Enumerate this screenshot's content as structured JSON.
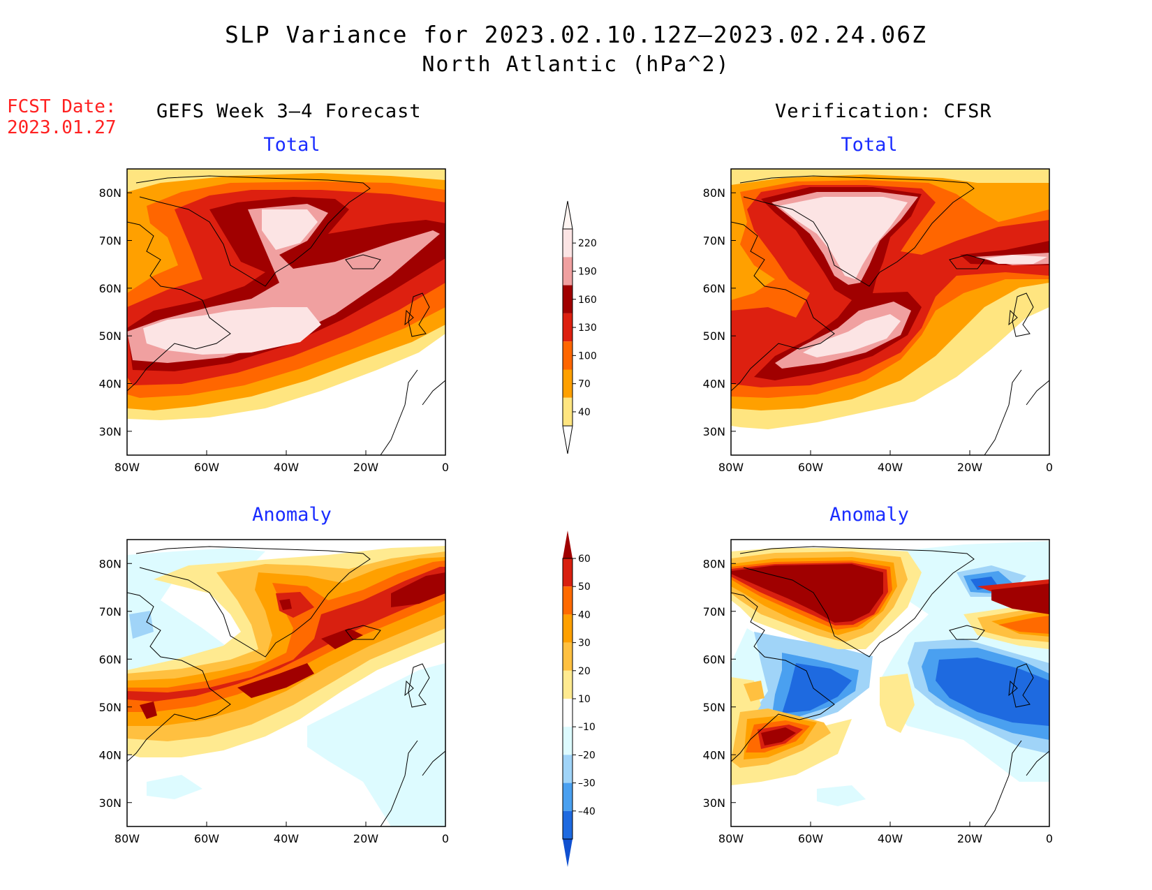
{
  "title": "SLP Variance for 2023.02.10.12Z–2023.02.24.06Z",
  "subtitle": "North Atlantic (hPa^2)",
  "fcst_label": "FCST Date:",
  "fcst_date": "2023.01.27",
  "left_column_title": "GEFS Week 3–4 Forecast",
  "right_column_title": "Verification: CFSR",
  "panels": {
    "fc_total": {
      "title": "Total"
    },
    "ver_total": {
      "title": "Total"
    },
    "fc_anom": {
      "title": "Anomaly"
    },
    "ver_anom": {
      "title": "Anomaly"
    }
  },
  "axes": {
    "x_ticks": [
      "80W",
      "60W",
      "40W",
      "20W",
      "0"
    ],
    "y_ticks": [
      "80N",
      "70N",
      "60N",
      "50N",
      "40N",
      "30N"
    ]
  },
  "colorbar_total": {
    "levels": [
      "220",
      "190",
      "160",
      "130",
      "100",
      "70",
      "40"
    ],
    "colors": [
      "#fce4e4",
      "#f0a0a0",
      "#a00000",
      "#dd2010",
      "#ff6600",
      "#ffa000",
      "#ffe580"
    ]
  },
  "colorbar_anomaly": {
    "levels": [
      "60",
      "50",
      "40",
      "30",
      "20",
      "10",
      "–10",
      "–20",
      "–30",
      "–40"
    ],
    "colors": [
      "#a00000",
      "#d82010",
      "#ff6a00",
      "#ffa000",
      "#ffc040",
      "#ffea90",
      "#ffffff",
      "#ddfbff",
      "#a0d4f8",
      "#4aa0f0",
      "#1e6ae0",
      "#1050d0"
    ]
  },
  "chart_data": [
    {
      "type": "heatmap",
      "title": "Total",
      "series_group": "GEFS Week 3–4 Forecast",
      "xlim": [
        "80W",
        "0"
      ],
      "ylim": [
        "25N",
        "85N"
      ],
      "colorbar_levels": [
        40,
        70,
        100,
        130,
        160,
        190,
        220
      ]
    },
    {
      "type": "heatmap",
      "title": "Total",
      "series_group": "Verification: CFSR",
      "xlim": [
        "80W",
        "0"
      ],
      "ylim": [
        "25N",
        "85N"
      ],
      "colorbar_levels": [
        40,
        70,
        100,
        130,
        160,
        190,
        220
      ]
    },
    {
      "type": "heatmap",
      "title": "Anomaly",
      "series_group": "GEFS Week 3–4 Forecast",
      "xlim": [
        "80W",
        "0"
      ],
      "ylim": [
        "25N",
        "85N"
      ],
      "colorbar_levels": [
        -40,
        -30,
        -20,
        -10,
        10,
        20,
        30,
        40,
        50,
        60
      ]
    },
    {
      "type": "heatmap",
      "title": "Anomaly",
      "series_group": "Verification: CFSR",
      "xlim": [
        "80W",
        "0"
      ],
      "ylim": [
        "25N",
        "85N"
      ],
      "colorbar_levels": [
        -40,
        -30,
        -20,
        -10,
        10,
        20,
        30,
        40,
        50,
        60
      ]
    }
  ]
}
